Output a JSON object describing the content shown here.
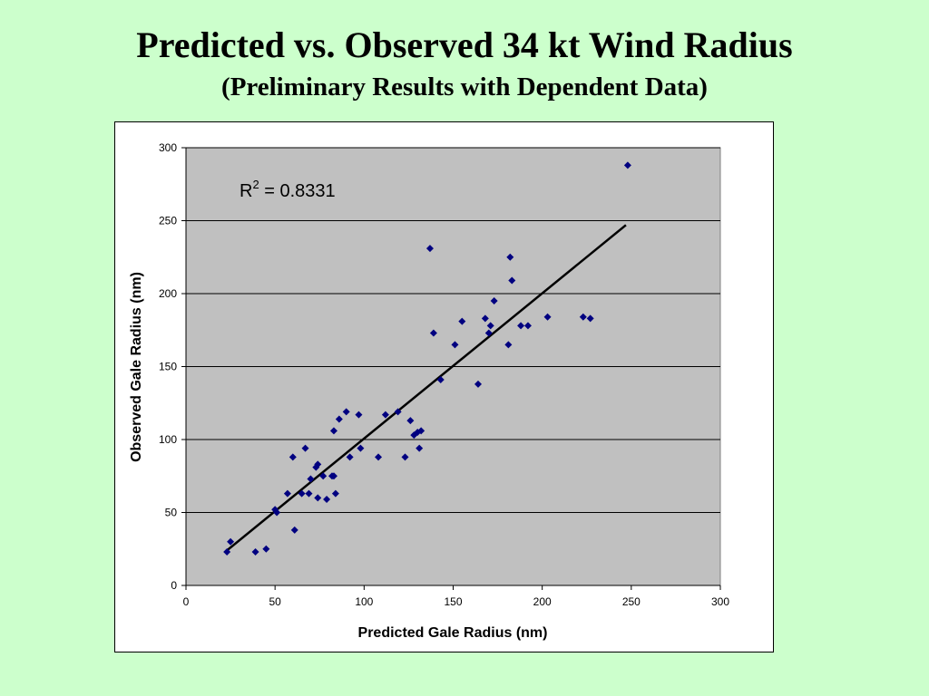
{
  "slide": {
    "title": "Predicted vs. Observed 34 kt Wind Radius",
    "subtitle": "(Preliminary Results with Dependent Data)"
  },
  "colors": {
    "background": "#ccffcc",
    "plot_area": "#c0c0c0",
    "marker": "#000080",
    "trendline": "#000000"
  },
  "chart_data": {
    "type": "scatter",
    "title": "",
    "xlabel": "Predicted Gale Radius (nm)",
    "ylabel": "Observed Gale Radius (nm)",
    "xlim": [
      0,
      300
    ],
    "ylim": [
      0,
      300
    ],
    "xticks": [
      0,
      50,
      100,
      150,
      200,
      250,
      300
    ],
    "yticks": [
      0,
      50,
      100,
      150,
      200,
      250,
      300
    ],
    "grid": "horizontal",
    "annotation": {
      "base": "R",
      "sup": "2",
      "rest": " = 0.8331"
    },
    "trendline": {
      "x": [
        23,
        247
      ],
      "y": [
        24,
        247
      ]
    },
    "points": [
      {
        "x": 23,
        "y": 23
      },
      {
        "x": 25,
        "y": 30
      },
      {
        "x": 39,
        "y": 23
      },
      {
        "x": 45,
        "y": 25
      },
      {
        "x": 50,
        "y": 52
      },
      {
        "x": 51,
        "y": 50
      },
      {
        "x": 57,
        "y": 63
      },
      {
        "x": 60,
        "y": 88
      },
      {
        "x": 61,
        "y": 38
      },
      {
        "x": 65,
        "y": 63
      },
      {
        "x": 67,
        "y": 94
      },
      {
        "x": 69,
        "y": 63
      },
      {
        "x": 70,
        "y": 73
      },
      {
        "x": 73,
        "y": 81
      },
      {
        "x": 74,
        "y": 83
      },
      {
        "x": 74,
        "y": 60
      },
      {
        "x": 77,
        "y": 75
      },
      {
        "x": 79,
        "y": 59
      },
      {
        "x": 82,
        "y": 75
      },
      {
        "x": 83,
        "y": 75
      },
      {
        "x": 83,
        "y": 106
      },
      {
        "x": 84,
        "y": 63
      },
      {
        "x": 86,
        "y": 114
      },
      {
        "x": 90,
        "y": 119
      },
      {
        "x": 92,
        "y": 88
      },
      {
        "x": 97,
        "y": 117
      },
      {
        "x": 98,
        "y": 94
      },
      {
        "x": 108,
        "y": 88
      },
      {
        "x": 112,
        "y": 117
      },
      {
        "x": 119,
        "y": 119
      },
      {
        "x": 123,
        "y": 88
      },
      {
        "x": 126,
        "y": 113
      },
      {
        "x": 128,
        "y": 103
      },
      {
        "x": 130,
        "y": 105
      },
      {
        "x": 131,
        "y": 94
      },
      {
        "x": 132,
        "y": 106
      },
      {
        "x": 137,
        "y": 231
      },
      {
        "x": 139,
        "y": 173
      },
      {
        "x": 143,
        "y": 141
      },
      {
        "x": 151,
        "y": 165
      },
      {
        "x": 155,
        "y": 181
      },
      {
        "x": 164,
        "y": 138
      },
      {
        "x": 168,
        "y": 183
      },
      {
        "x": 170,
        "y": 173
      },
      {
        "x": 171,
        "y": 178
      },
      {
        "x": 173,
        "y": 195
      },
      {
        "x": 181,
        "y": 165
      },
      {
        "x": 182,
        "y": 225
      },
      {
        "x": 183,
        "y": 209
      },
      {
        "x": 188,
        "y": 178
      },
      {
        "x": 192,
        "y": 178
      },
      {
        "x": 203,
        "y": 184
      },
      {
        "x": 223,
        "y": 184
      },
      {
        "x": 227,
        "y": 183
      },
      {
        "x": 248,
        "y": 288
      }
    ]
  }
}
